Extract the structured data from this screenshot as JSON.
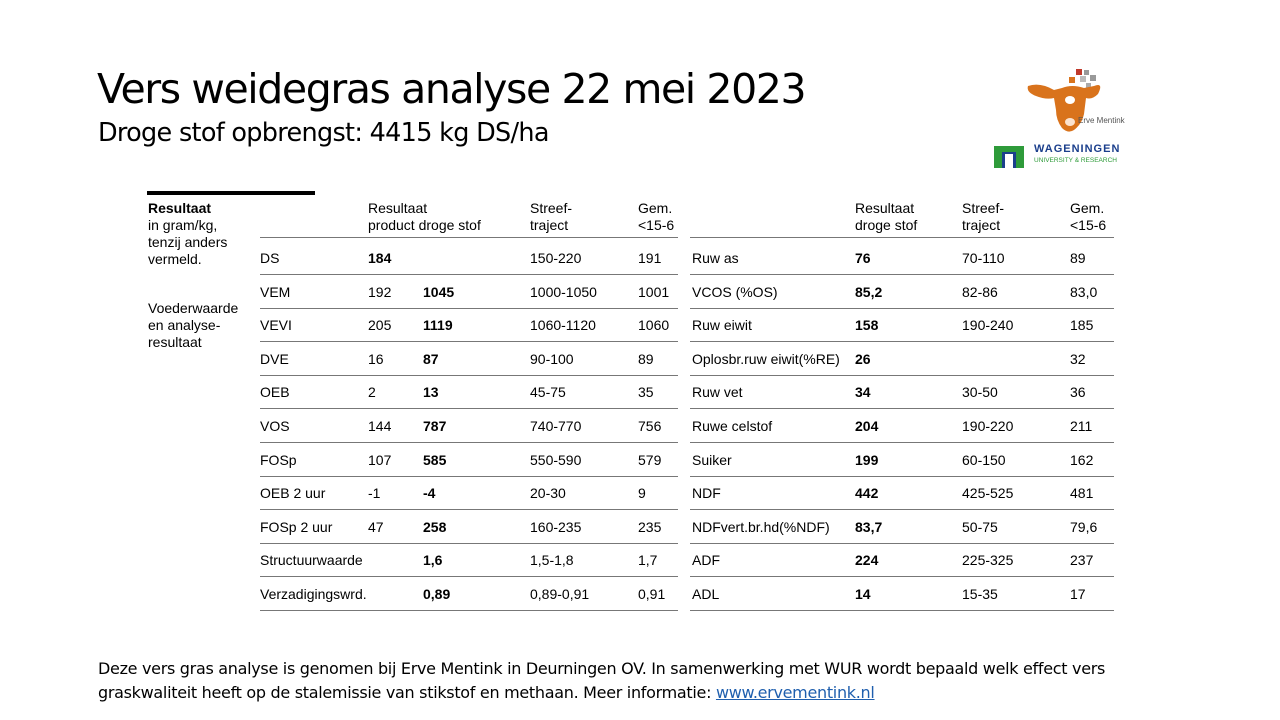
{
  "title": "Vers weidegras analyse 22 mei 2023",
  "subtitle": "Droge stof opbrengst: 4415 kg DS/ha",
  "logos": {
    "cow_text": "Erve Mentink",
    "wur_text": "WAGENINGEN",
    "wur_sub": "UNIVERSITY & RESEARCH"
  },
  "side": {
    "heading": "Resultaat",
    "lines": [
      "in gram/kg,",
      "tenzij anders",
      "vermeld."
    ],
    "note": [
      "Voederwaarde",
      "en analyse-",
      "resultaat"
    ]
  },
  "left_headers": {
    "res1": "Resultaat",
    "res2": "product droge stof",
    "str1": "Streef-",
    "str2": "traject",
    "gem1": "Gem.",
    "gem2": "<15-6"
  },
  "right_headers": {
    "res1": "Resultaat",
    "res2": "droge stof",
    "str1": "Streef-",
    "str2": "traject",
    "gem1": "Gem.",
    "gem2": "<15-6"
  },
  "left_rows": [
    {
      "name": "DS",
      "product": "184",
      "ds": "",
      "traject": "150-220",
      "gem": "191",
      "bold_product": true
    },
    {
      "name": "VEM",
      "product": "192",
      "ds": "1045",
      "traject": "1000-1050",
      "gem": "1001"
    },
    {
      "name": "VEVI",
      "product": "205",
      "ds": "1119",
      "traject": "1060-1120",
      "gem": "1060"
    },
    {
      "name": "DVE",
      "product": "16",
      "ds": "87",
      "traject": "90-100",
      "gem": "89"
    },
    {
      "name": "OEB",
      "product": "2",
      "ds": "13",
      "traject": "45-75",
      "gem": "35"
    },
    {
      "name": "VOS",
      "product": "144",
      "ds": "787",
      "traject": "740-770",
      "gem": "756"
    },
    {
      "name": "FOSp",
      "product": "107",
      "ds": "585",
      "traject": "550-590",
      "gem": "579"
    },
    {
      "name": "OEB 2 uur",
      "product": "-1",
      "ds": "-4",
      "traject": "20-30",
      "gem": "9"
    },
    {
      "name": "FOSp 2 uur",
      "product": "47",
      "ds": "258",
      "traject": "160-235",
      "gem": "235"
    },
    {
      "name": "Structuurwaarde",
      "product": "",
      "ds": "1,6",
      "traject": "1,5-1,8",
      "gem": "1,7"
    },
    {
      "name": "Verzadigingswrd.",
      "product": "",
      "ds": "0,89",
      "traject": "0,89-0,91",
      "gem": "0,91"
    }
  ],
  "right_rows": [
    {
      "name": "Ruw as",
      "ds": "76",
      "traject": "70-110",
      "gem": "89"
    },
    {
      "name": "VCOS (%OS)",
      "ds": "85,2",
      "traject": "82-86",
      "gem": "83,0"
    },
    {
      "name": "Ruw eiwit",
      "ds": "158",
      "traject": "190-240",
      "gem": "185"
    },
    {
      "name": "Oplosbr.ruw eiwit(%RE)",
      "ds": "26",
      "traject": "",
      "gem": "32"
    },
    {
      "name": "Ruw vet",
      "ds": "34",
      "traject": "30-50",
      "gem": "36"
    },
    {
      "name": "Ruwe celstof",
      "ds": "204",
      "traject": "190-220",
      "gem": "211"
    },
    {
      "name": "Suiker",
      "ds": "199",
      "traject": "60-150",
      "gem": "162"
    },
    {
      "name": "NDF",
      "ds": "442",
      "traject": "425-525",
      "gem": "481"
    },
    {
      "name": "NDFvert.br.hd(%NDF)",
      "ds": "83,7",
      "traject": "50-75",
      "gem": "79,6"
    },
    {
      "name": "ADF",
      "ds": "224",
      "traject": "225-325",
      "gem": "237"
    },
    {
      "name": "ADL",
      "ds": "14",
      "traject": "15-35",
      "gem": "17"
    }
  ],
  "footer": {
    "text": "Deze vers gras analyse is genomen bij Erve Mentink in Deurningen OV. In samenwerking met WUR wordt bepaald welk effect vers graskwaliteit heeft op de stalemissie van stikstof en methaan. Meer informatie: ",
    "link": "www.ervementink.nl"
  },
  "colors": {
    "link": "#1f5fae",
    "cow": "#d9731c",
    "wur_green": "#2e9b3a",
    "wur_blue": "#1b3f8c"
  }
}
